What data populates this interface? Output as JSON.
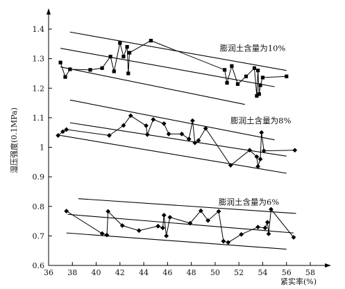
{
  "chart_data": {
    "type": "line",
    "xlabel": "紧实率(%)",
    "ylabel": "湿压强度(0.1MPa)",
    "xlim": [
      36,
      58
    ],
    "ylim": [
      0.6,
      1.4
    ],
    "xticks": [
      36,
      38,
      40,
      42,
      44,
      46,
      48,
      50,
      52,
      54,
      56,
      58
    ],
    "yticks": [
      0.6,
      0.7,
      0.8,
      0.9,
      1.0,
      1.1,
      1.2,
      1.3,
      1.4
    ],
    "xtick_labels": [
      "36",
      "38",
      "40",
      "42",
      "44",
      "46",
      "48",
      "50",
      "52",
      "54",
      "56",
      "58"
    ],
    "ytick_labels": [
      "0.6",
      "0.7",
      "0.8",
      "0.9",
      "1",
      "1.1",
      "1.2",
      "1.3",
      "1.4"
    ],
    "series": [
      {
        "name": "膨润土含量为10%",
        "marker": "square",
        "annotation_at": [
          50.4,
          1.335
        ],
        "x": [
          37.0,
          37.4,
          37.8,
          39.5,
          40.5,
          41.2,
          41.5,
          42.0,
          42.3,
          42.6,
          42.7,
          42.8,
          44.6,
          50.8,
          51.0,
          51.4,
          51.9,
          52.6,
          53.3,
          53.5,
          53.6,
          53.7,
          53.8,
          54.0,
          56.0
        ],
        "y": [
          1.287,
          1.238,
          1.264,
          1.262,
          1.268,
          1.307,
          1.257,
          1.353,
          1.307,
          1.34,
          1.25,
          1.32,
          1.361,
          1.262,
          1.218,
          1.275,
          1.214,
          1.24,
          1.268,
          1.174,
          1.26,
          1.18,
          1.21,
          1.236,
          1.24
        ],
        "trend_lines": [
          [
            [
              37.8,
              1.39
            ],
            [
              56.0,
              1.26
            ]
          ],
          [
            [
              37.0,
              1.335
            ],
            [
              55.0,
              1.205
            ]
          ],
          [
            [
              37.0,
              1.272
            ],
            [
              52.5,
              1.145
            ]
          ]
        ]
      },
      {
        "name": "膨润土含量为8%",
        "marker": "diamond",
        "annotation_at": [
          51.3,
          1.09
        ],
        "x": [
          36.8,
          37.2,
          37.5,
          41.1,
          42.3,
          42.9,
          44.2,
          44.3,
          44.8,
          45.7,
          46.1,
          47.2,
          47.8,
          48.1,
          48.3,
          48.6,
          49.2,
          51.3,
          52.9,
          53.5,
          53.6,
          53.8,
          53.9,
          54.1,
          56.7
        ],
        "y": [
          1.04,
          1.053,
          1.06,
          1.04,
          1.074,
          1.107,
          1.073,
          1.043,
          1.094,
          1.08,
          1.045,
          1.045,
          1.028,
          1.09,
          1.015,
          1.023,
          1.064,
          0.939,
          0.99,
          0.968,
          0.935,
          0.96,
          1.05,
          0.988,
          0.99
        ],
        "trend_lines": [
          [
            [
              37.8,
              1.16
            ],
            [
              55.0,
              1.025
            ]
          ],
          [
            [
              37.8,
              1.083
            ],
            [
              56.0,
              0.97
            ]
          ],
          [
            [
              37.0,
              1.04
            ],
            [
              56.0,
              0.912
            ]
          ]
        ]
      },
      {
        "name": "膨润土含量为6%",
        "marker": "diamond",
        "annotation_at": [
          50.3,
          0.815
        ],
        "x": [
          37.5,
          40.5,
          40.9,
          41.0,
          42.2,
          43.6,
          45.2,
          45.6,
          45.7,
          45.9,
          46.2,
          47.9,
          48.8,
          49.4,
          50.3,
          50.7,
          51.1,
          52.2,
          53.6,
          54.2,
          54.4,
          54.5,
          54.7,
          56.6
        ],
        "y": [
          0.784,
          0.708,
          0.703,
          0.783,
          0.735,
          0.718,
          0.733,
          0.727,
          0.77,
          0.7,
          0.763,
          0.743,
          0.785,
          0.752,
          0.783,
          0.682,
          0.678,
          0.705,
          0.73,
          0.727,
          0.746,
          0.707,
          0.79,
          0.695
        ],
        "trend_lines": [
          [
            [
              38.5,
              0.826
            ],
            [
              56.8,
              0.776
            ]
          ],
          [
            [
              37.6,
              0.773
            ],
            [
              56.6,
              0.71
            ]
          ],
          [
            [
              37.5,
              0.71
            ],
            [
              56.0,
              0.655
            ]
          ]
        ]
      }
    ]
  }
}
